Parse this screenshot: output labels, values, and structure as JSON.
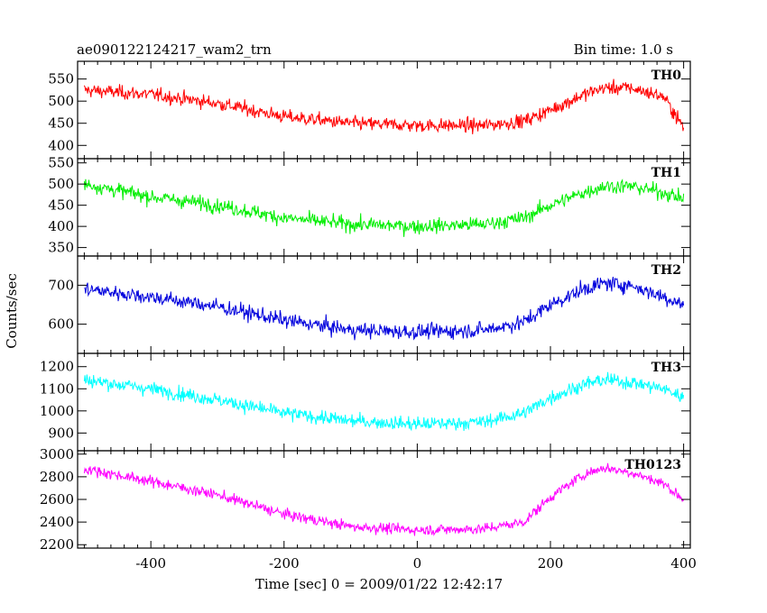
{
  "header": {
    "title": "ae090122124217_wam2_trn",
    "bin_time": "Bin time: 1.0 s"
  },
  "chart_data": {
    "type": "line",
    "title": "ae090122124217_wam2_trn",
    "annotation": "Bin time: 1.0 s",
    "xlabel": "Time [sec] 0 = 2009/01/22 12:42:17",
    "ylabel": "Counts/sec",
    "xlim": [
      -510,
      410
    ],
    "x_ticks": [
      -400,
      -200,
      0,
      200,
      400
    ],
    "x_range": [
      -500,
      400
    ],
    "grid": false,
    "panels": [
      {
        "name": "TH0",
        "color": "#ff0000",
        "ylim": [
          370,
          590
        ],
        "y_ticks": [
          400,
          450,
          500,
          550
        ],
        "noise": 20,
        "trend": [
          [
            -500,
            525
          ],
          [
            -400,
            515
          ],
          [
            -300,
            495
          ],
          [
            -200,
            465
          ],
          [
            -100,
            450
          ],
          [
            0,
            445
          ],
          [
            100,
            445
          ],
          [
            160,
            455
          ],
          [
            200,
            480
          ],
          [
            250,
            515
          ],
          [
            280,
            530
          ],
          [
            320,
            530
          ],
          [
            370,
            510
          ],
          [
            400,
            440
          ]
        ]
      },
      {
        "name": "TH1",
        "color": "#00ee00",
        "ylim": [
          330,
          560
        ],
        "y_ticks": [
          350,
          400,
          450,
          500,
          550
        ],
        "noise": 22,
        "trend": [
          [
            -500,
            500
          ],
          [
            -400,
            470
          ],
          [
            -300,
            450
          ],
          [
            -200,
            420
          ],
          [
            -100,
            405
          ],
          [
            0,
            400
          ],
          [
            100,
            405
          ],
          [
            160,
            420
          ],
          [
            200,
            450
          ],
          [
            250,
            480
          ],
          [
            280,
            495
          ],
          [
            320,
            495
          ],
          [
            370,
            480
          ],
          [
            400,
            465
          ]
        ]
      },
      {
        "name": "TH2",
        "color": "#0000dd",
        "ylim": [
          525,
          775
        ],
        "y_ticks": [
          600,
          700
        ],
        "noise": 25,
        "trend": [
          [
            -500,
            690
          ],
          [
            -400,
            670
          ],
          [
            -300,
            645
          ],
          [
            -200,
            610
          ],
          [
            -100,
            585
          ],
          [
            0,
            580
          ],
          [
            100,
            585
          ],
          [
            160,
            605
          ],
          [
            200,
            650
          ],
          [
            250,
            690
          ],
          [
            280,
            705
          ],
          [
            320,
            700
          ],
          [
            370,
            670
          ],
          [
            400,
            650
          ]
        ]
      },
      {
        "name": "TH3",
        "color": "#00ffff",
        "ylim": [
          820,
          1260
        ],
        "y_ticks": [
          900,
          1000,
          1100,
          1200
        ],
        "noise": 40,
        "trend": [
          [
            -500,
            1140
          ],
          [
            -400,
            1100
          ],
          [
            -300,
            1050
          ],
          [
            -200,
            990
          ],
          [
            -100,
            955
          ],
          [
            0,
            940
          ],
          [
            100,
            950
          ],
          [
            160,
            990
          ],
          [
            200,
            1060
          ],
          [
            250,
            1120
          ],
          [
            280,
            1140
          ],
          [
            320,
            1130
          ],
          [
            370,
            1100
          ],
          [
            400,
            1060
          ]
        ]
      },
      {
        "name": "TH0123",
        "color": "#ff00ff",
        "ylim": [
          2170,
          3030
        ],
        "y_ticks": [
          2200,
          2400,
          2600,
          2800,
          3000
        ],
        "noise": 60,
        "trend": [
          [
            -500,
            2870
          ],
          [
            -400,
            2760
          ],
          [
            -300,
            2640
          ],
          [
            -200,
            2470
          ],
          [
            -100,
            2360
          ],
          [
            0,
            2330
          ],
          [
            100,
            2340
          ],
          [
            160,
            2400
          ],
          [
            200,
            2620
          ],
          [
            250,
            2820
          ],
          [
            280,
            2880
          ],
          [
            320,
            2840
          ],
          [
            370,
            2740
          ],
          [
            400,
            2600
          ]
        ]
      }
    ]
  }
}
